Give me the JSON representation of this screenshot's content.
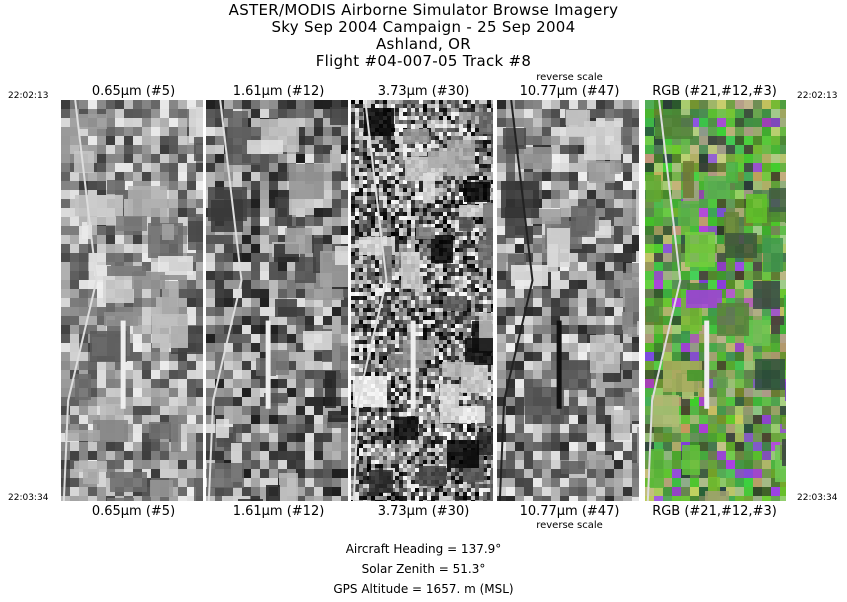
{
  "title": {
    "line1": "ASTER/MODIS Airborne Simulator Browse Imagery",
    "line2": "Sky Sep 2004 Campaign - 25 Sep 2004",
    "line3": "Ashland, OR",
    "line4": "Flight #04-007-05 Track #8"
  },
  "times": {
    "start": "22:02:13",
    "end": "22:03:34"
  },
  "reverse_scale_label": "reverse scale",
  "bands": [
    {
      "label": "0.65μm (#5)",
      "style": "visible"
    },
    {
      "label": "1.61μm (#12)",
      "style": "swir"
    },
    {
      "label": "3.73μm (#30)",
      "style": "mwir"
    },
    {
      "label": "10.77μm (#47)",
      "style": "thermal"
    },
    {
      "label": "RGB (#21,#12,#3)",
      "style": "rgb"
    }
  ],
  "info": {
    "heading": "Aircraft Heading =  137.9°",
    "zenith": "Solar Zenith =   51.3°",
    "altitude": "GPS Altitude =   1657. m (MSL)"
  }
}
